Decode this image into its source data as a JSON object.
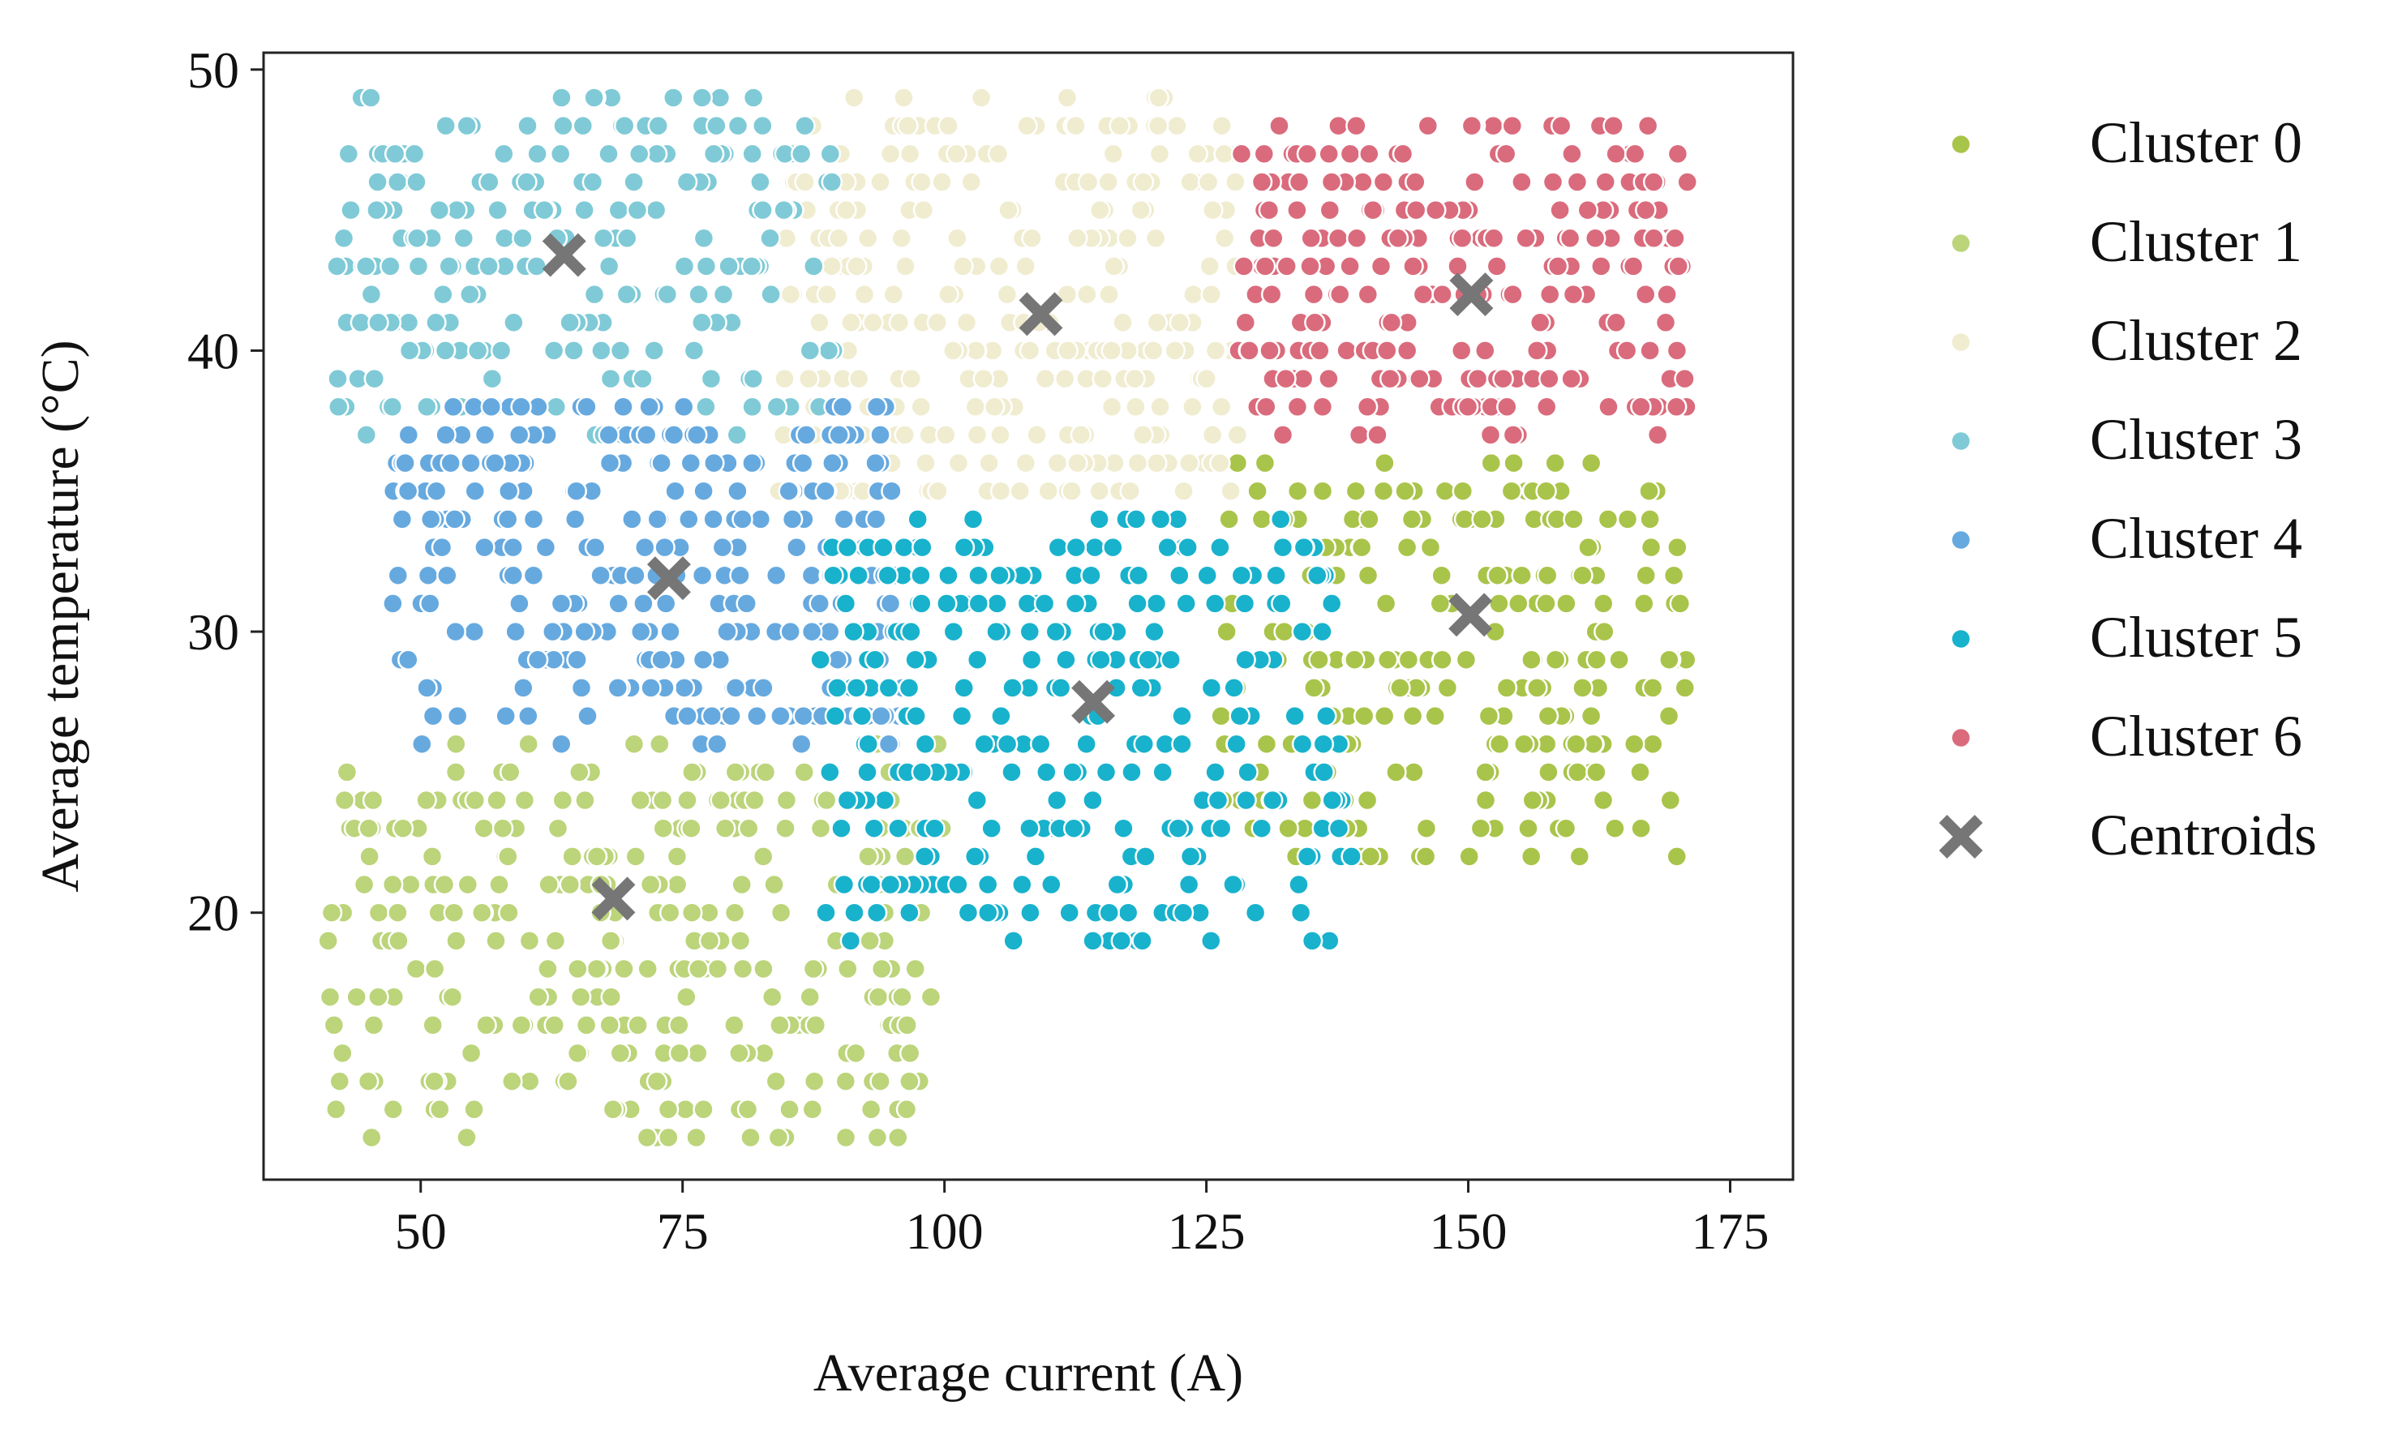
{
  "chart_data": {
    "type": "scatter",
    "title": "",
    "xlabel": "Average current (A)",
    "ylabel": "Average temperature (°C)",
    "xlim": [
      35,
      181
    ],
    "ylim": [
      10.5,
      50.6
    ],
    "xticks": [
      50,
      75,
      100,
      125,
      150,
      175
    ],
    "yticks": [
      20,
      30,
      40,
      50
    ],
    "grid": false,
    "legend_position": "right-outside",
    "series": [
      {
        "name": "Cluster 0",
        "color": "#a9c44a",
        "region": {
          "x": [
            126,
            171
          ],
          "y": [
            22,
            36
          ]
        },
        "approx_points": 240
      },
      {
        "name": "Cluster 1",
        "color": "#bcd47a",
        "region": {
          "x": [
            41,
            100
          ],
          "y": [
            12,
            26
          ]
        },
        "approx_points": 320
      },
      {
        "name": "Cluster 2",
        "color": "#f0ecd0",
        "region": {
          "x": [
            84,
            128
          ],
          "y": [
            35,
            49
          ]
        },
        "approx_points": 300
      },
      {
        "name": "Cluster 3",
        "color": "#7fcad6",
        "region": {
          "x": [
            42,
            90
          ],
          "y": [
            37,
            49
          ]
        },
        "approx_points": 230
      },
      {
        "name": "Cluster 4",
        "color": "#66a9df",
        "region": {
          "x": [
            47,
            96
          ],
          "y": [
            26,
            38
          ]
        },
        "approx_points": 300
      },
      {
        "name": "Cluster 5",
        "color": "#18b2cc",
        "region": {
          "x": [
            88,
            139
          ],
          "y": [
            19,
            34
          ]
        },
        "approx_points": 300
      },
      {
        "name": "Cluster 6",
        "color": "#da6b7c",
        "region": {
          "x": [
            128,
            171
          ],
          "y": [
            37,
            48
          ]
        },
        "approx_points": 260
      }
    ],
    "centroids": {
      "name": "Centroids",
      "color": "#767676",
      "points": [
        {
          "x": 150.2,
          "y": 30.6
        },
        {
          "x": 68.4,
          "y": 20.5
        },
        {
          "x": 109.2,
          "y": 41.3
        },
        {
          "x": 63.7,
          "y": 43.4
        },
        {
          "x": 73.7,
          "y": 31.9
        },
        {
          "x": 114.2,
          "y": 27.5
        },
        {
          "x": 150.3,
          "y": 42.0
        }
      ]
    }
  }
}
